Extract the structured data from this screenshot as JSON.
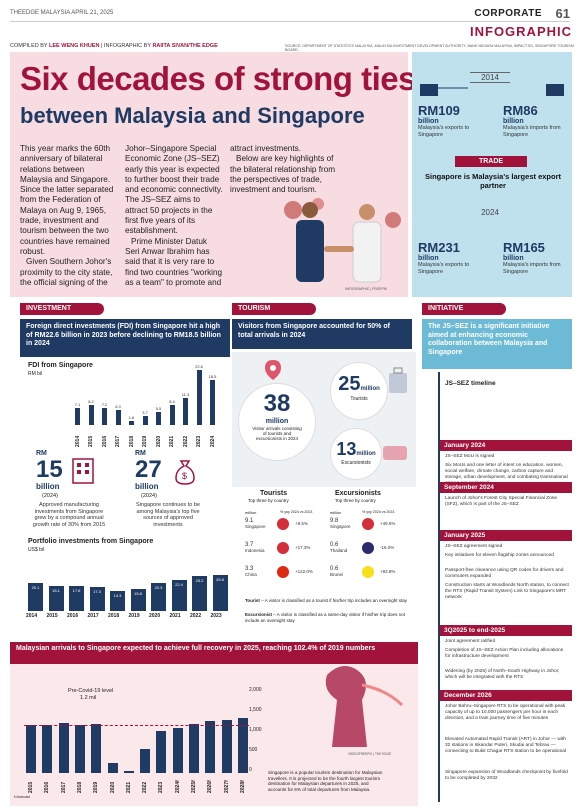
{
  "header": {
    "masthead": "THEEDGE MALAYSIA  APRIL 21, 2025",
    "section": "CORPORATE",
    "page_number": "61",
    "category": "INFOGRAPHIC",
    "compiled_label": "COMPILED BY",
    "compiled_name": "LEE WENG KHUEN",
    "infographic_label": "INFOGRAPHIC BY",
    "infographic_name": "RAIITA SIVAN/THE EDGE",
    "sources": "SOURCE: DEPARTMENT OF STATISTICS MALAYSIA, MALAYSIA INVESTMENT DEVELOPMENT AUTHORITY, BANK NEGARA MALAYSIA, IMPACT.SG, SINGAPORE TOURISM BOARD"
  },
  "hero": {
    "title1": "Six decades of strong ties",
    "title2": "between Malaysia and Singapore",
    "col1": "This year marks the 60th anniversary of bilateral relations between Malaysia and Singapore. Since the latter separated from the Federation of Malaya on Aug 9, 1965, trade, investment and tourism between the two countries have remained robust.",
    "col1b": "Given Southern Johor's proximity to the city state, the official signing of the",
    "col2": "Johor–Singapore Special Economic Zone (JS–SEZ) early this year is expected to further boost their trade and economic connectivity. The JS–SEZ aims to attract 50 projects in the first five years of its establishment.",
    "col2b": "Prime Minister Datuk Seri Anwar Ibrahim has said that it is very rare to find two countries \"working as a team\" to promote and",
    "col3": "attract investments.",
    "col3b": "Below are key highlights of the bilateral relationship from the perspectives of trade, investment and tourism.",
    "photo_credit": "INFOGRAPHIC | FREEPIK"
  },
  "trade": {
    "year1": "2014",
    "exp1": "RM109",
    "exp1_unit": "billion",
    "exp1_label": "Malaysia's exports to Singapore",
    "imp1": "RM86",
    "imp1_unit": "billion",
    "imp1_label": "Malaysia's imports from Singapore",
    "header": "TRADE",
    "tagline": "Singapore is Malaysia's largest export partner",
    "year2": "2024",
    "exp2": "RM231",
    "exp2_unit": "billion",
    "exp2_label": "Malaysia's exports to Singapore",
    "imp2": "RM165",
    "imp2_unit": "billion",
    "imp2_label": "Malaysia's imports from Singapore"
  },
  "investment": {
    "header": "INVESTMENT",
    "band": "Foreign direct investments (FDI) from Singapore hit a high of RM22.6 billion in 2023 before declining to RM18.5 billion in 2024",
    "fdi_title": "FDI from Singapore",
    "fdi_unit": "RM bil",
    "stat1_prefix": "RM",
    "stat1_value": "15",
    "stat1_unit": "billion",
    "stat1_year": "(2024)",
    "stat1_note": "Approved manufacturing investments from Singapore grew by a compound annual growth rate of 30% from 2015",
    "stat2_prefix": "RM",
    "stat2_value": "27",
    "stat2_unit": "billion",
    "stat2_year": "(2024)",
    "stat2_note": "Singapore continues to be among Malaysia's top five sources of approved investments",
    "portfolio_title": "Portfolio investments from Singapore",
    "portfolio_unit": "US$ bil"
  },
  "tourism": {
    "header": "TOURISM",
    "band": "Visitors from Singapore accounted for 50% of total arrivals in 2024",
    "visitors_value": "38",
    "visitors_unit": "million",
    "visitors_note": "Visitor arrivals consisting of tourists and excursionists in 2024",
    "tourists_value": "25",
    "tourists_unit": "million",
    "tourists_label": "Tourists",
    "excursionists_value": "13",
    "excursionists_unit": "million",
    "excursionists_label": "Excursionists",
    "tourists_table_title": "Tourists",
    "tourists_table_sub": "Top three by country",
    "excursionists_table_title": "Excursionists",
    "excursionists_table_sub": "Top three by country",
    "col_million": "million",
    "col_change": "% yoy  2024 vs 2023",
    "tourists_rows": [
      {
        "value": "9.1",
        "country": "Singapore",
        "change": "+8.5%",
        "color": "#d42e3a"
      },
      {
        "value": "3.7",
        "country": "Indonesia",
        "change": "+17.3%",
        "color": "#d42e3a"
      },
      {
        "value": "3.3",
        "country": "China",
        "change": "+122.0%",
        "color": "#de2910"
      }
    ],
    "excursionists_rows": [
      {
        "value": "9.8",
        "country": "Singapore",
        "change": "+49.6%",
        "color": "#d42e3a"
      },
      {
        "value": "0.6",
        "country": "Thailand",
        "change": "-16.0%",
        "color": "#2d2a6e"
      },
      {
        "value": "0.6",
        "country": "Brunei",
        "change": "+93.8%",
        "color": "#f7e017"
      }
    ],
    "def_tourist_term": "Tourist",
    "def_tourist": " – A visitor is classified as a tourist if his/her trip includes an overnight stay",
    "def_excursionist_term": "Excursionist",
    "def_excursionist": " – A visitor is classified as a same-day visitor if his/her trip does not include an overnight stay"
  },
  "initiative": {
    "header": "INITIATIVE",
    "band": "The JS–SEZ is a significant initiative aimed at enhancing economic collaboration between Malaysia and Singapore",
    "timeline_title": "JS–SEZ timeline",
    "events": [
      {
        "date": "January 2024",
        "items": [
          "JS–SEZ MoU is signed",
          "Six MoUs and one letter of intent on education, women, social welfare, climate change, carbon capture and storage, urban development, and combating transnational crimes are endorsed"
        ]
      },
      {
        "date": "September 2024",
        "items": [
          "Launch of Johor's Forest City Special Financial Zone (SFZ), which is part of the JS–SEZ"
        ]
      },
      {
        "date": "January 2025",
        "items": [
          "JS–SEZ agreement signed",
          "Key initiatives for eleven flagship zones announced",
          "Passport-free clearance using QR codes for drivers and commuters expanded",
          "Construction starts at Woodlands North station, to connect the RTS (Rapid Transit System) Link to Singapore's MRT network"
        ]
      },
      {
        "date": "3Q2025 to end-2025",
        "items": [
          "Joint agreement ratified",
          "Completion of JS–SEZ Action Plan including allocations for infrastructure development",
          "Widening (by 2025) of North–South Highway in Johor, which will be integrated with the RTS"
        ]
      },
      {
        "date": "December 2026",
        "items": [
          "Johor Bahru–Singapore RTS to be operational with peak capacity of up to 10,000 passengers per hour in each direction, and a train journey time of five minutes",
          "Elevated Automated Rapid Transit (ART) in Johor — with 32 stations in Iskandar Puteri, Skudai and Tebrau — connecting to Bukit Chagar RTS station to be operational",
          "Singapore expansion of Woodlands checkpoint by fivefold to be completed by 2032"
        ]
      }
    ]
  },
  "arrivals": {
    "band": "Malaysian arrivals to Singapore expected to achieve full recovery in 2025, reaching 102.4% of 2019 numbers",
    "precovid_label": "Pre-Covid-19 level",
    "precovid_value": "1.2 mil",
    "footnote": "f=forecast",
    "note": "Singapore is a popular tourism destination for Malaysian travellers. It is projected to be the fourth largest tourism destination for Malaysian departures in 2025, and accounts for 6% of total departures from Malaysia.",
    "photo_credit": "VIDEO/FREEPIK | THE EDGE",
    "yticks": [
      "2,000",
      "1,500",
      "1,000",
      "500",
      "0"
    ]
  },
  "chart_data": [
    {
      "type": "bar",
      "title": "FDI from Singapore",
      "ylabel": "RM bil",
      "categories": [
        "2014",
        "2015",
        "2016",
        "2017",
        "2018",
        "2019",
        "2020",
        "2021",
        "2022",
        "2023",
        "2024"
      ],
      "values": [
        7.1,
        8.2,
        7.2,
        6.3,
        1.6,
        3.7,
        5.5,
        8.4,
        11.3,
        22.6,
        18.5
      ],
      "ylim": [
        0,
        24
      ]
    },
    {
      "type": "bar",
      "title": "Portfolio investments from Singapore",
      "ylabel": "US$ bil",
      "categories": [
        "2014",
        "2015",
        "2016",
        "2017",
        "2018",
        "2019",
        "2020",
        "2021",
        "2022",
        "2023"
      ],
      "values": [
        20.1,
        18.1,
        17.6,
        17.3,
        14.3,
        15.8,
        20.3,
        22.4,
        25.2,
        25.8
      ],
      "ylim": [
        0,
        30
      ]
    },
    {
      "type": "bar",
      "categories": [
        "2015",
        "2016",
        "2017",
        "2018",
        "2019",
        "2020",
        "2021",
        "2022",
        "2023",
        "2024f",
        "2025f",
        "2026f",
        "2027f",
        "2028f"
      ],
      "values": [
        1200,
        1200,
        1250,
        1200,
        1230,
        250,
        40,
        600,
        1050,
        1120,
        1230,
        1300,
        1330,
        1370
      ],
      "ylim": [
        0,
        2000
      ]
    }
  ]
}
